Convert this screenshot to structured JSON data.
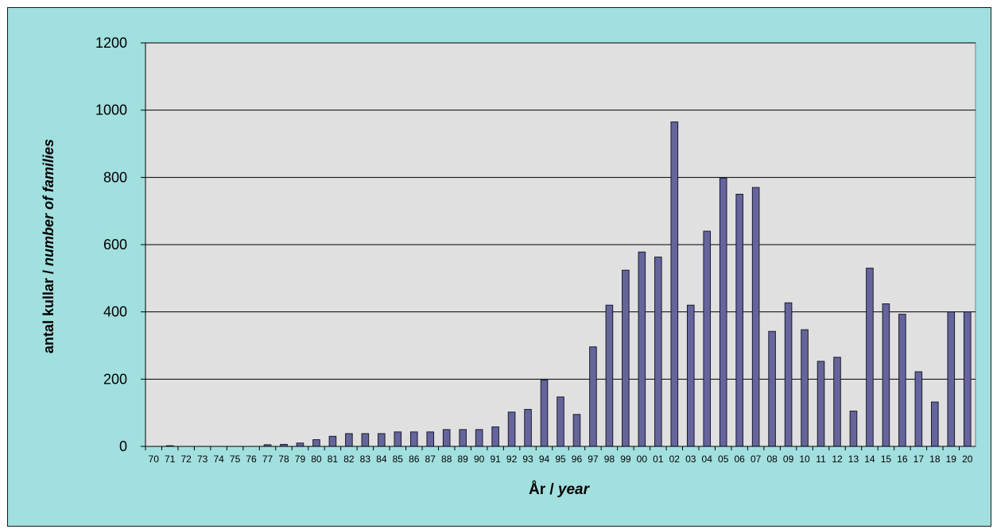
{
  "chart_data": {
    "type": "bar",
    "categories": [
      "70",
      "71",
      "72",
      "73",
      "74",
      "75",
      "76",
      "77",
      "78",
      "79",
      "80",
      "81",
      "82",
      "83",
      "84",
      "85",
      "86",
      "87",
      "88",
      "89",
      "90",
      "91",
      "92",
      "93",
      "94",
      "95",
      "96",
      "97",
      "98",
      "99",
      "00",
      "01",
      "02",
      "03",
      "04",
      "05",
      "06",
      "07",
      "08",
      "09",
      "10",
      "11",
      "12",
      "13",
      "14",
      "15",
      "16",
      "17",
      "18",
      "19",
      "20"
    ],
    "series": [
      {
        "values": [
          0,
          2,
          0,
          0,
          0,
          0,
          0,
          5,
          6,
          10,
          20,
          30,
          38,
          38,
          38,
          43,
          43,
          43,
          50,
          50,
          50,
          58,
          102,
          110,
          197,
          147,
          95,
          296,
          420,
          524,
          578,
          563,
          965,
          420,
          640,
          798,
          750,
          770,
          342,
          427,
          347,
          253,
          265,
          105,
          530,
          424,
          393,
          222,
          132,
          400,
          400
        ]
      }
    ],
    "ylabel_part1": "antal kullar / ",
    "ylabel_part2": "number of families",
    "xlabel_part1": "År / ",
    "xlabel_part2": "year",
    "ylim": [
      0,
      1200
    ],
    "yticks": [
      0,
      200,
      400,
      600,
      800,
      1000,
      1200
    ],
    "grid": true,
    "legend": "none",
    "colors": {
      "bar": "#65659c",
      "bar_border": "#1a1a2e",
      "plot_bg": "#e0e0e0",
      "outer_bg": "#a2dfdf",
      "grid": "#000000"
    }
  }
}
